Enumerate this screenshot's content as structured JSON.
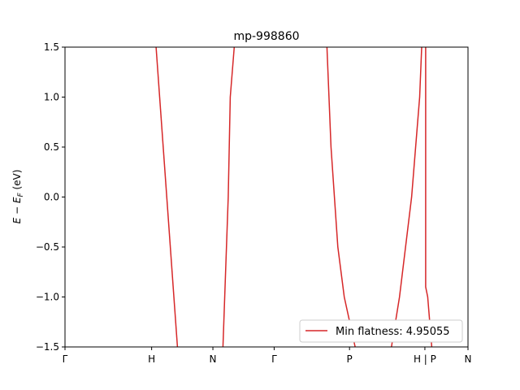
{
  "chart_data": {
    "type": "line",
    "title": "mp-998860",
    "ylabel": "E − E_F (eV)",
    "xlabel": "",
    "ylim": [
      -1.5,
      1.5
    ],
    "xlim": [
      0,
      1
    ],
    "yticks": [
      -1.5,
      -1.0,
      -0.5,
      0.0,
      0.5,
      1.0,
      1.5
    ],
    "ytick_labels": [
      "−1.5",
      "−1.0",
      "−0.5",
      "0.0",
      "0.5",
      "1.0",
      "1.5"
    ],
    "xticks": [
      {
        "pos": 0.0,
        "label": "Γ"
      },
      {
        "pos": 0.215,
        "label": "H"
      },
      {
        "pos": 0.367,
        "label": "N"
      },
      {
        "pos": 0.519,
        "label": "Γ"
      },
      {
        "pos": 0.706,
        "label": "P"
      },
      {
        "pos": 0.893,
        "label": "H | P"
      },
      {
        "pos": 1.0,
        "label": "N"
      }
    ],
    "legend": {
      "label": "Min flatness: 4.95055",
      "position": "lower-right"
    },
    "series": [
      {
        "color": "#d62728",
        "points": [
          [
            0.226,
            1.5
          ],
          [
            0.279,
            -1.5
          ]
        ]
      },
      {
        "color": "#d62728",
        "points": [
          [
            0.392,
            -1.5
          ],
          [
            0.405,
            0.0
          ],
          [
            0.41,
            1.0
          ],
          [
            0.42,
            1.5
          ]
        ]
      },
      {
        "color": "#d62728",
        "points": [
          [
            0.65,
            1.5
          ],
          [
            0.66,
            0.5
          ],
          [
            0.677,
            -0.5
          ],
          [
            0.693,
            -1.0
          ],
          [
            0.72,
            -1.5
          ]
        ]
      },
      {
        "color": "#d62728",
        "points": [
          [
            0.81,
            -1.5
          ],
          [
            0.83,
            -1.0
          ],
          [
            0.86,
            0.0
          ],
          [
            0.88,
            1.0
          ],
          [
            0.885,
            1.5
          ]
        ]
      },
      {
        "color": "#d62728",
        "points": [
          [
            0.895,
            1.5
          ],
          [
            0.895,
            -0.9
          ],
          [
            0.9,
            -1.0
          ],
          [
            0.91,
            -1.5
          ]
        ]
      }
    ]
  }
}
